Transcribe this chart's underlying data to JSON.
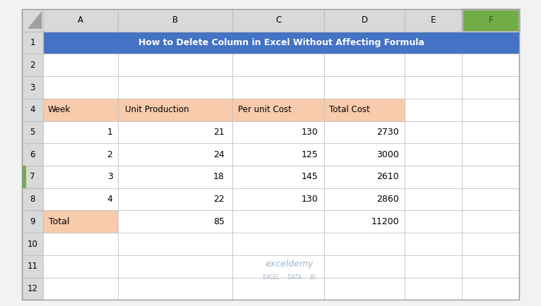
{
  "title": "How to Delete Column in Excel Without Affecting Formula",
  "col_headers": [
    "A",
    "B",
    "C",
    "D",
    "E",
    "F"
  ],
  "row_numbers": [
    "1",
    "2",
    "3",
    "4",
    "5",
    "6",
    "7",
    "8",
    "9",
    "10",
    "11",
    "12"
  ],
  "table_headers": [
    "Week",
    "Unit Production",
    "Per unit Cost",
    "Total Cost"
  ],
  "data_rows": [
    [
      "1",
      "21",
      "130",
      "2730"
    ],
    [
      "2",
      "24",
      "125",
      "3000"
    ],
    [
      "3",
      "18",
      "145",
      "2610"
    ],
    [
      "4",
      "22",
      "130",
      "2860"
    ]
  ],
  "total_row": [
    "Total",
    "85",
    "",
    "11200"
  ],
  "header_bg": "#4472C4",
  "header_text": "#FFFFFF",
  "table_header_bg": "#F8CBAD",
  "total_cell_bg": "#F8CBAD",
  "row7_left_bg": "#70AD47",
  "col_header_bg": "#D9D9D9",
  "col_f_header_bg": "#70AD47",
  "grid_color": "#BFBFBF",
  "background": "#FFFFFF",
  "watermark_color": "#A0B4C8",
  "sheet_bg": "#F2F2F2"
}
